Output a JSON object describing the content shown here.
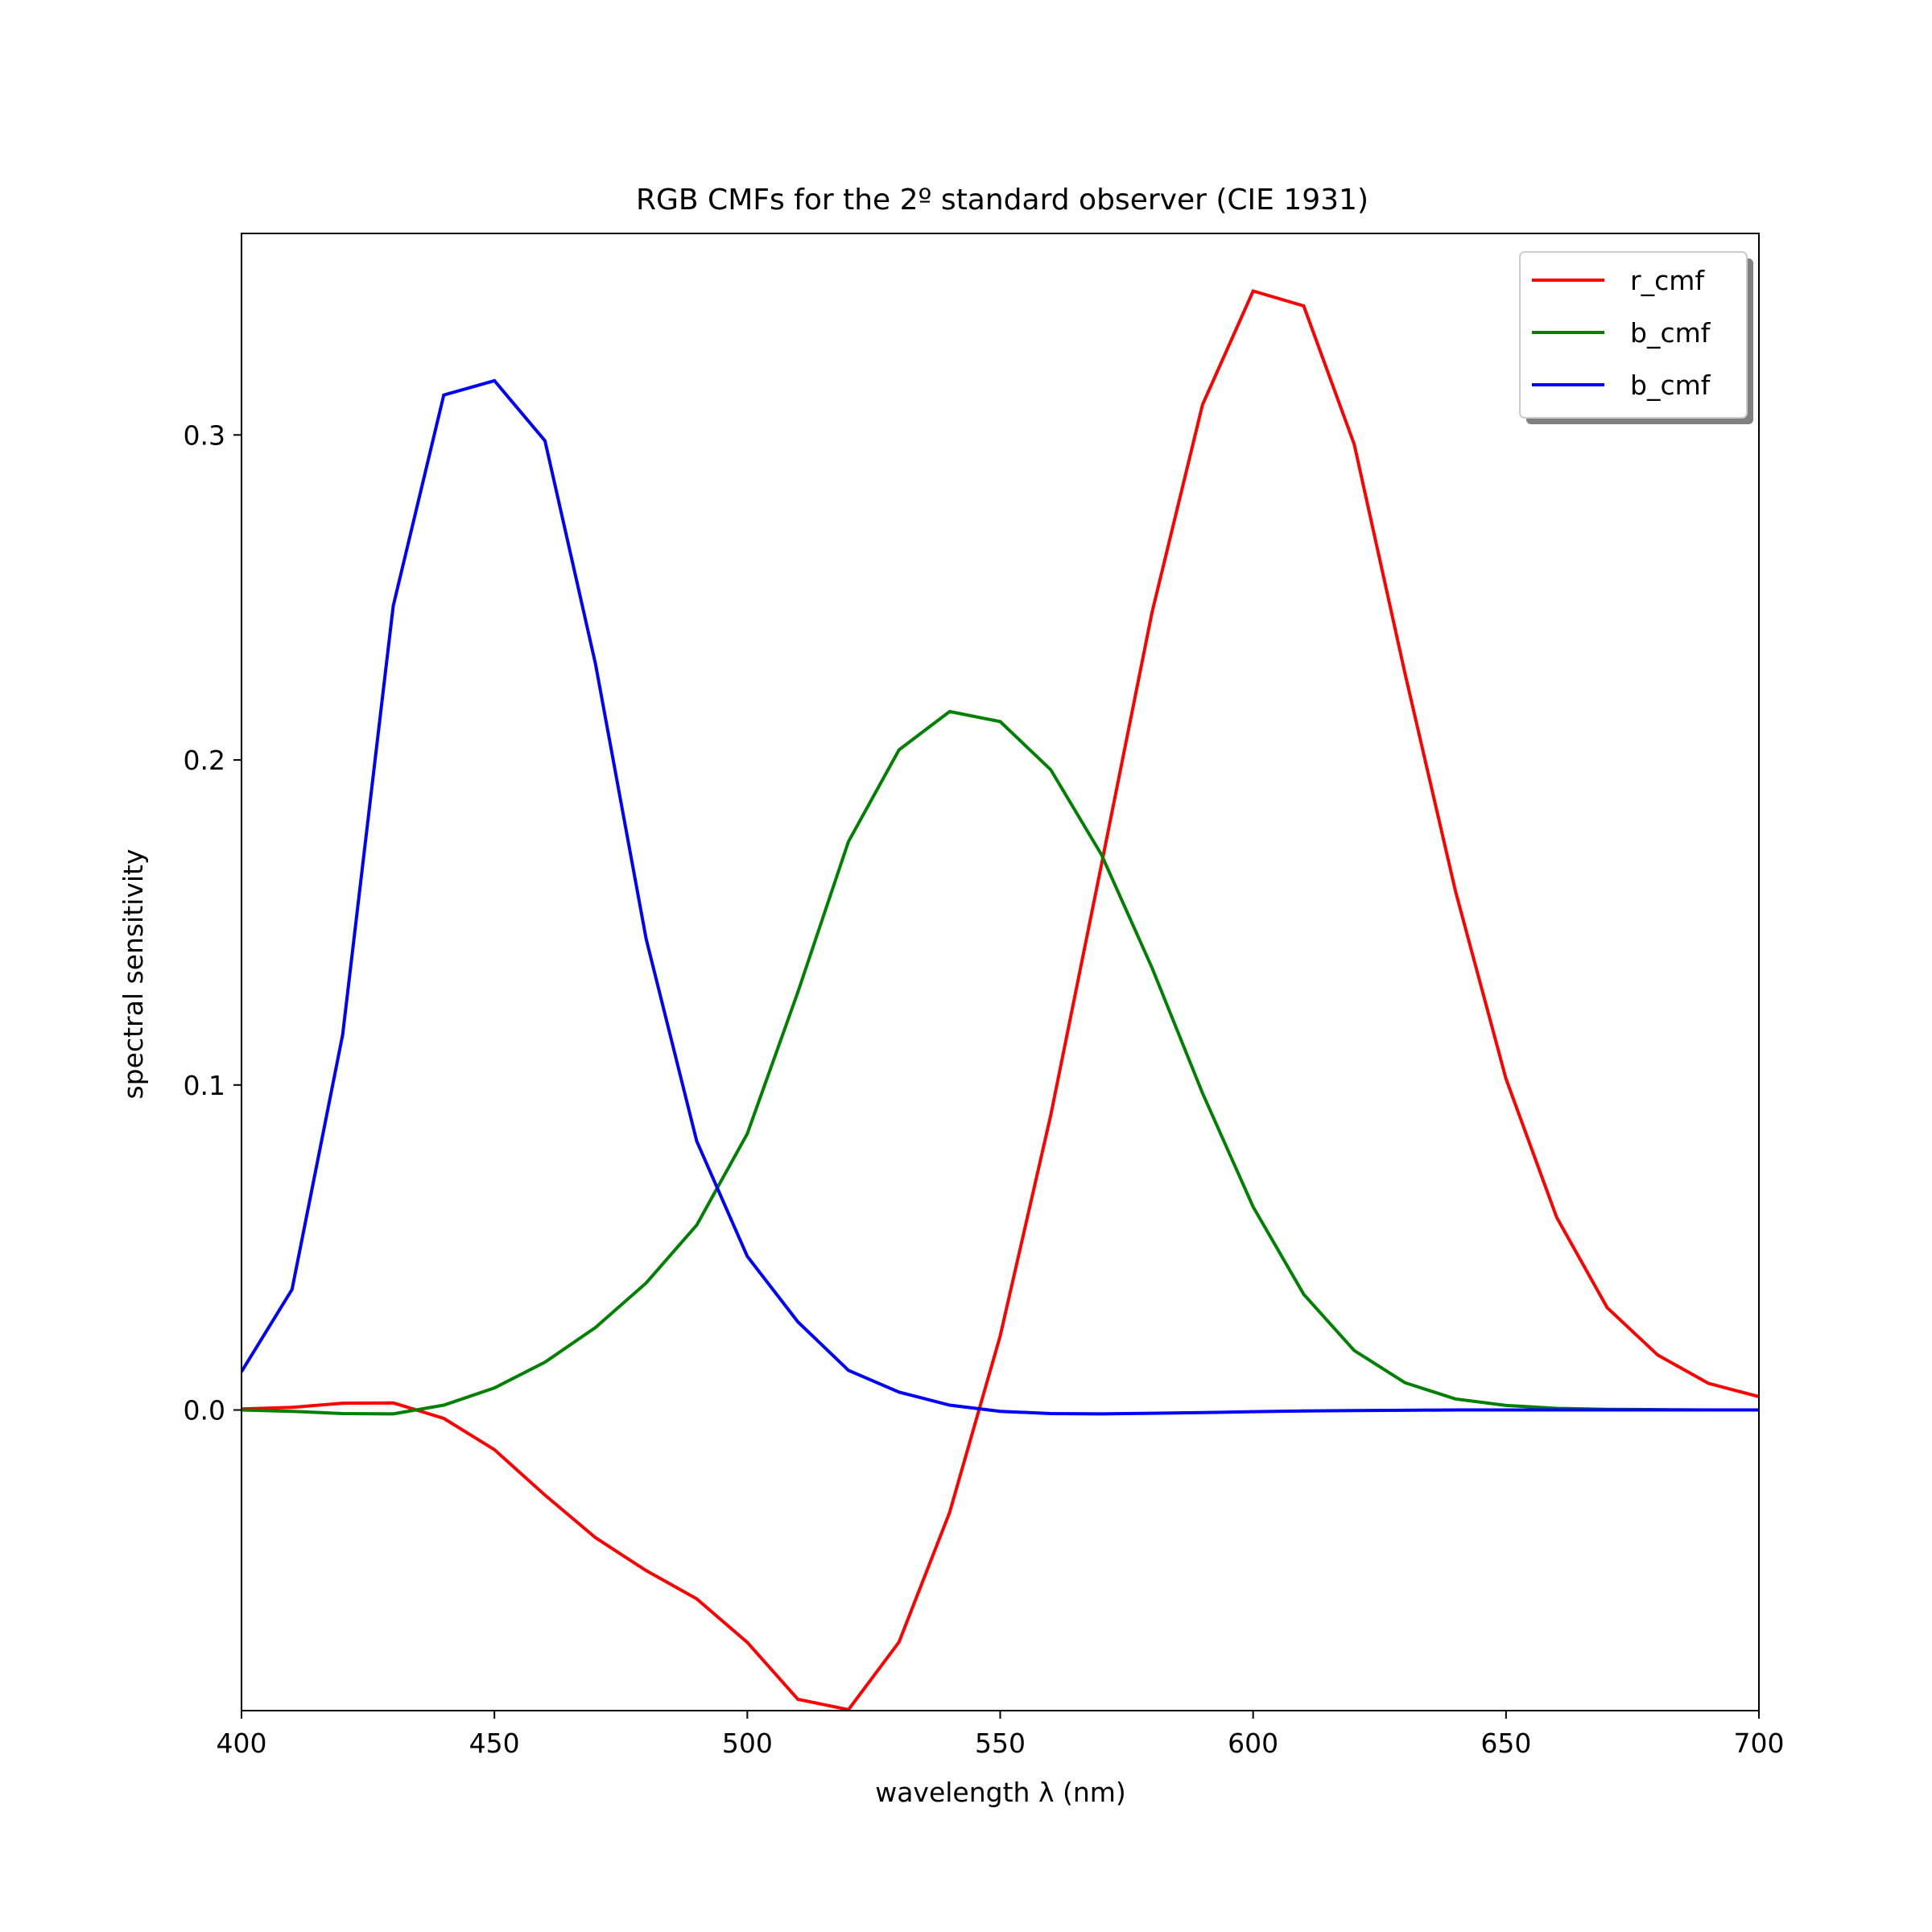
{
  "chart_data": {
    "type": "line",
    "title": "RGB CMFs for the 2º standard observer (CIE 1931)",
    "xlabel": "wavelength λ (nm)",
    "ylabel": "spectral sensitivity",
    "xlim": [
      400,
      700
    ],
    "ylim": [
      -0.0925,
      0.362
    ],
    "xticks": [
      400,
      450,
      500,
      550,
      600,
      650,
      700
    ],
    "yticks": [
      0.0,
      0.1,
      0.2,
      0.3
    ],
    "xtick_labels": [
      "400",
      "450",
      "500",
      "550",
      "600",
      "650",
      "700"
    ],
    "ytick_labels": [
      "0.0",
      "0.1",
      "0.2",
      "0.3"
    ],
    "grid": false,
    "legend_position": "top-right",
    "x": [
      400,
      410,
      420,
      430,
      440,
      450,
      460,
      470,
      480,
      490,
      500,
      510,
      520,
      530,
      540,
      550,
      560,
      570,
      580,
      590,
      600,
      610,
      620,
      630,
      640,
      650,
      660,
      670,
      680,
      690,
      700
    ],
    "series": [
      {
        "name": "r_cmf",
        "color": "#ff0000",
        "values": [
          0.0003,
          0.0008,
          0.0021,
          0.0022,
          -0.0026,
          -0.0122,
          -0.0262,
          -0.0393,
          -0.0494,
          -0.0581,
          -0.0715,
          -0.089,
          -0.0922,
          -0.0714,
          -0.0315,
          0.0228,
          0.0907,
          0.1677,
          0.2453,
          0.3093,
          0.3443,
          0.3397,
          0.2971,
          0.2268,
          0.1597,
          0.1019,
          0.0593,
          0.0315,
          0.0169,
          0.0082,
          0.0041
        ]
      },
      {
        "name": "b_cmf",
        "color": "#008000",
        "values": [
          0.0,
          -0.0004,
          -0.0011,
          -0.0012,
          0.0015,
          0.0068,
          0.0147,
          0.0254,
          0.0391,
          0.0569,
          0.085,
          0.1286,
          0.1749,
          0.2031,
          0.2149,
          0.2118,
          0.197,
          0.1709,
          0.1361,
          0.0975,
          0.0625,
          0.0356,
          0.0183,
          0.0084,
          0.0034,
          0.0014,
          0.0005,
          0.0002,
          0.0001,
          0.0,
          0.0
        ]
      },
      {
        "name": "b_cmf",
        "color": "#0000ff",
        "values": [
          0.0118,
          0.0371,
          0.1155,
          0.2474,
          0.3123,
          0.3167,
          0.2982,
          0.2295,
          0.1449,
          0.0827,
          0.0473,
          0.0271,
          0.0122,
          0.0055,
          0.0015,
          -0.0004,
          -0.0011,
          -0.0012,
          -0.001,
          -0.0008,
          -0.0005,
          -0.0003,
          -0.0002,
          -0.0001,
          0.0,
          0.0,
          0.0,
          0.0,
          0.0,
          0.0,
          0.0
        ]
      }
    ]
  }
}
